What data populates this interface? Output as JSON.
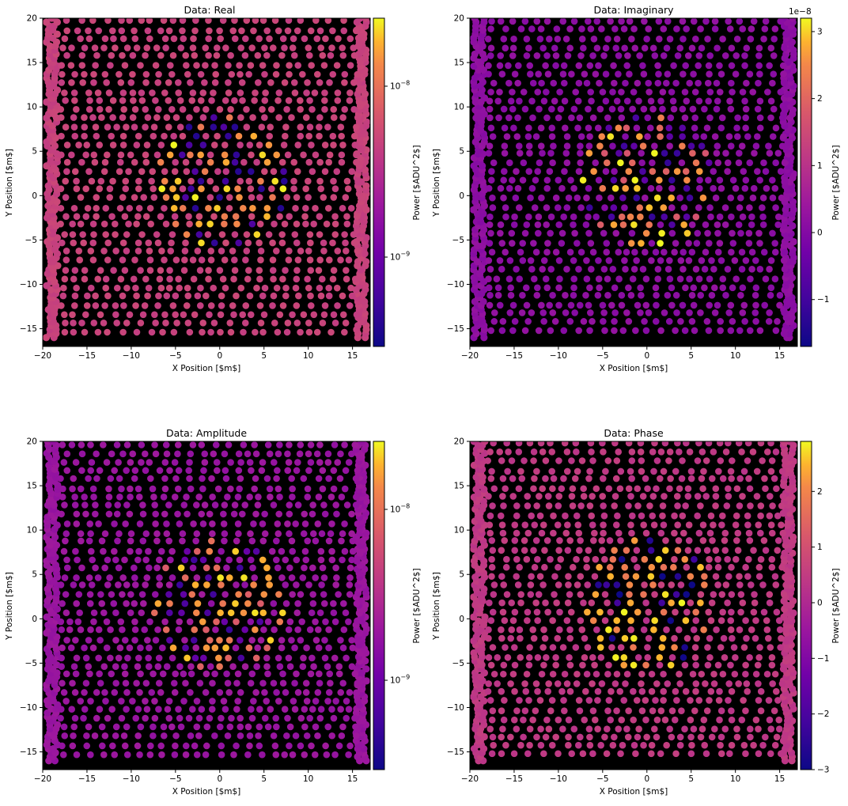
{
  "chart_data": [
    {
      "type": "scatter",
      "title": "Data: Real",
      "xlabel": "X Position [$m$]",
      "ylabel": "Y Position [$m$]",
      "xlim": [
        -20,
        17
      ],
      "ylim": [
        -17,
        20
      ],
      "xticks": [
        -20,
        -15,
        -10,
        -5,
        0,
        5,
        10,
        15
      ],
      "yticks": [
        -15,
        -10,
        -5,
        0,
        5,
        10,
        15,
        20
      ],
      "background": "#000000",
      "colormap": "plasma",
      "colorbar": {
        "label": "Power [$ADU^2$]",
        "scale": "log",
        "range": [
          3e-10,
          2.5e-08
        ],
        "ticks": [
          {
            "value": 1e-08,
            "label": "10−8"
          },
          {
            "value": 1e-09,
            "label": "10−9"
          }
        ]
      },
      "background_level": 0.62,
      "center_peak_level": 1.0,
      "center_trough_level": 0.05
    },
    {
      "type": "scatter",
      "title": "Data: Imaginary",
      "xlabel": "X Position [$m$]",
      "ylabel": "Y Position [$m$]",
      "xlim": [
        -20,
        17
      ],
      "ylim": [
        -17,
        20
      ],
      "xticks": [
        -20,
        -15,
        -10,
        -5,
        0,
        5,
        10,
        15
      ],
      "yticks": [
        -15,
        -10,
        -5,
        0,
        5,
        10,
        15,
        20
      ],
      "background": "#000000",
      "colormap": "plasma",
      "colorbar": {
        "label": "Power [$ADU^2$]",
        "scale": "linear",
        "range": [
          -1.7e-08,
          3.2e-08
        ],
        "offset_text": "1e−8",
        "ticks": [
          {
            "value": -1e-08,
            "label": "−1"
          },
          {
            "value": 0,
            "label": "0"
          },
          {
            "value": 1e-08,
            "label": "1"
          },
          {
            "value": 2e-08,
            "label": "2"
          },
          {
            "value": 3e-08,
            "label": "3"
          }
        ]
      },
      "background_level": 0.38,
      "center_peak_level": 1.0,
      "center_trough_level": 0.1
    },
    {
      "type": "scatter",
      "title": "Data: Amplitude",
      "xlabel": "X Position [$m$]",
      "ylabel": "Y Position [$m$]",
      "xlim": [
        -20,
        17
      ],
      "ylim": [
        -17,
        20
      ],
      "xticks": [
        -20,
        -15,
        -10,
        -5,
        0,
        5,
        10,
        15
      ],
      "yticks": [
        -15,
        -10,
        -5,
        0,
        5,
        10,
        15,
        20
      ],
      "background": "#000000",
      "colormap": "plasma",
      "colorbar": {
        "label": "Power [$ADU^2$]",
        "scale": "log",
        "range": [
          3e-10,
          2.5e-08
        ],
        "ticks": [
          {
            "value": 1e-08,
            "label": "10−8"
          },
          {
            "value": 1e-09,
            "label": "10−9"
          }
        ]
      },
      "background_level": 0.42,
      "center_peak_level": 1.0,
      "center_trough_level": 0.12
    },
    {
      "type": "scatter",
      "title": "Data: Phase",
      "xlabel": "X Position [$m$]",
      "ylabel": "Y Position [$m$]",
      "xlim": [
        -20,
        17
      ],
      "ylim": [
        -17,
        20
      ],
      "xticks": [
        -20,
        -15,
        -10,
        -5,
        0,
        5,
        10,
        15
      ],
      "yticks": [
        -15,
        -10,
        -5,
        0,
        5,
        10,
        15,
        20
      ],
      "background": "#000000",
      "colormap": "plasma",
      "colorbar": {
        "label": "Power [$ADU^2$]",
        "scale": "linear",
        "range": [
          -3.0,
          2.9
        ],
        "ticks": [
          {
            "value": -3,
            "label": "−3"
          },
          {
            "value": -2,
            "label": "−2"
          },
          {
            "value": -1,
            "label": "−1"
          },
          {
            "value": 0,
            "label": "0"
          },
          {
            "value": 1,
            "label": "1"
          },
          {
            "value": 2,
            "label": "2"
          }
        ]
      },
      "background_level": 0.58,
      "center_peak_level": 1.0,
      "center_trough_level": 0.0
    }
  ]
}
